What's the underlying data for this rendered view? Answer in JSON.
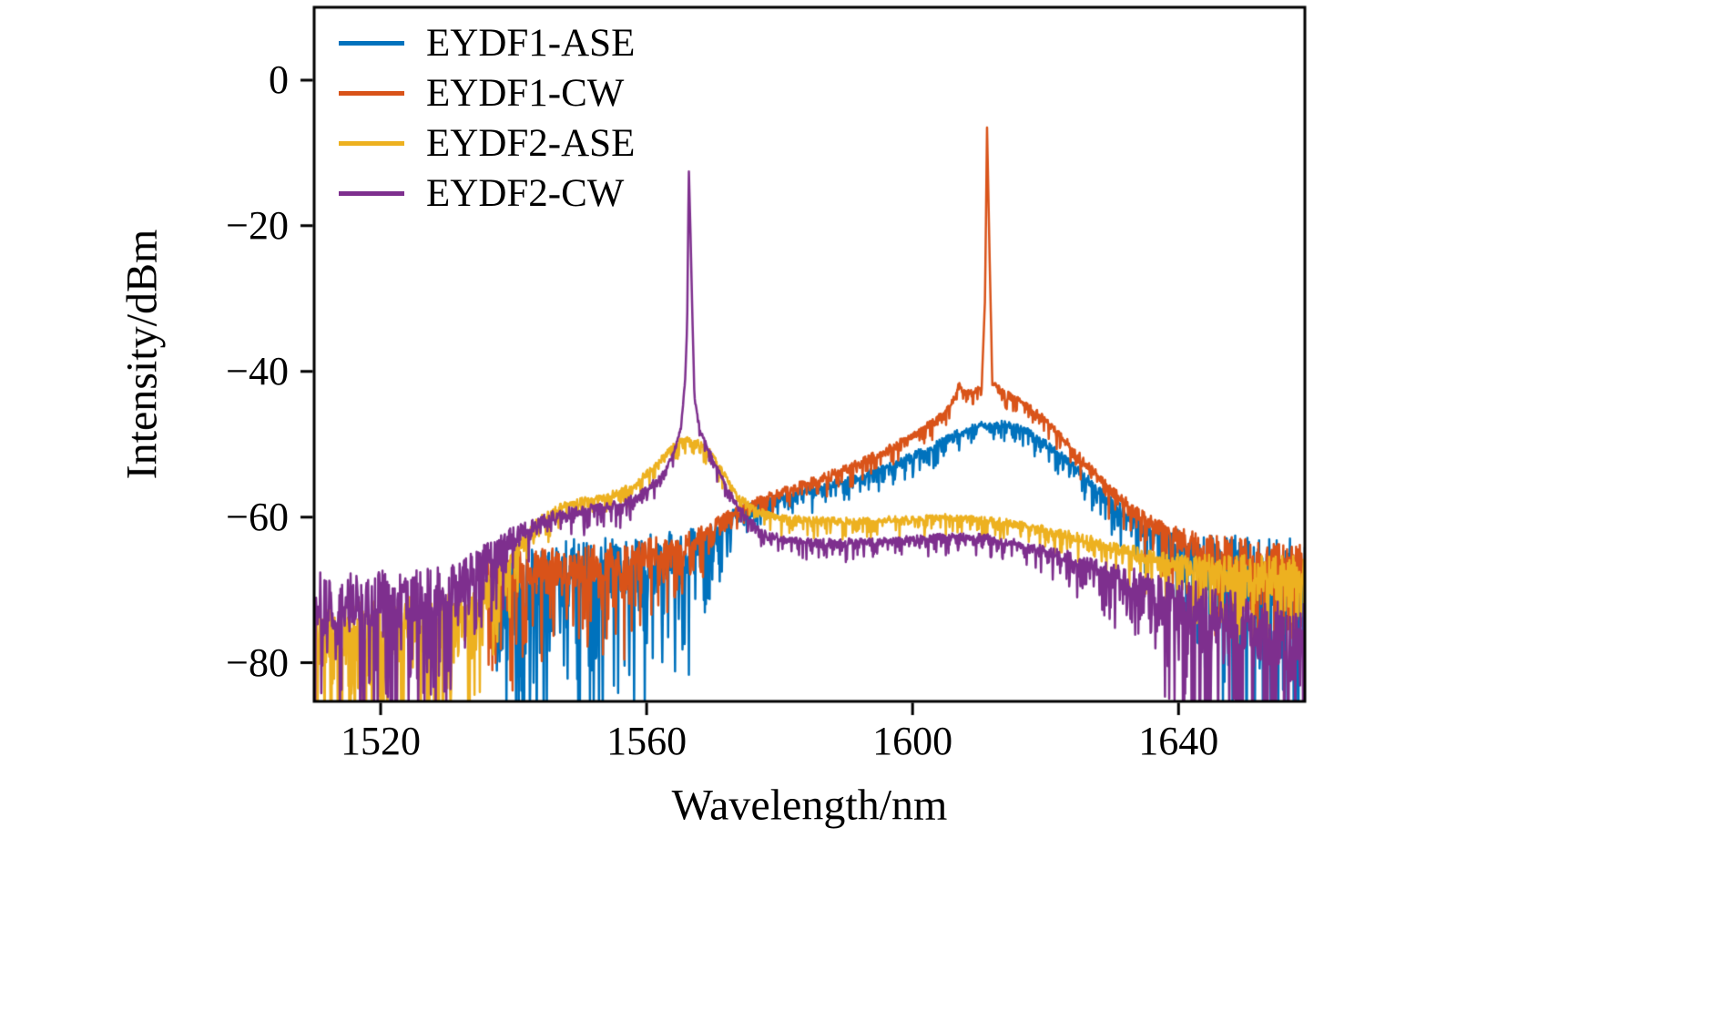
{
  "figure": {
    "background": "#ffffff",
    "frame_color": "#000000"
  },
  "chart_data": {
    "type": "line",
    "title": "",
    "xlabel": "Wavelength/nm",
    "ylabel": "Intensity/dBm",
    "xlim": [
      1510,
      1659
    ],
    "ylim": [
      -85.3,
      10
    ],
    "xticks": [
      1520,
      1560,
      1600,
      1640
    ],
    "yticks": [
      0,
      -20,
      -40,
      -60,
      -80
    ],
    "grid": false,
    "legend_position": "top-left",
    "series": [
      {
        "name": "EYDF1-ASE",
        "color": "#0072BD",
        "anchors": [
          [
            1537,
            -72,
            10
          ],
          [
            1540,
            -69,
            11
          ],
          [
            1548,
            -67,
            10
          ],
          [
            1556,
            -66.5,
            9
          ],
          [
            1563,
            -65.5,
            8
          ],
          [
            1568,
            -64,
            6
          ],
          [
            1571,
            -61.5,
            3
          ],
          [
            1574,
            -59,
            1.6
          ],
          [
            1578,
            -57.8,
            1.2
          ],
          [
            1584,
            -56.3,
            1.2
          ],
          [
            1590,
            -55,
            1.2
          ],
          [
            1596,
            -53.2,
            1.2
          ],
          [
            1602,
            -50.8,
            1.2
          ],
          [
            1606,
            -48.8,
            1.1
          ],
          [
            1610,
            -47.3,
            1.0
          ],
          [
            1614,
            -47.2,
            1.0
          ],
          [
            1617,
            -48,
            1.0
          ],
          [
            1621,
            -50.5,
            1.2
          ],
          [
            1626,
            -54.5,
            1.4
          ],
          [
            1630,
            -58,
            1.8
          ],
          [
            1634,
            -60.8,
            2.2
          ],
          [
            1638,
            -62.8,
            3
          ],
          [
            1642,
            -64.5,
            6
          ],
          [
            1647,
            -66.5,
            10
          ],
          [
            1652,
            -67.5,
            11
          ],
          [
            1659,
            -68,
            11
          ]
        ]
      },
      {
        "name": "EYDF1-CW",
        "color": "#D95319",
        "anchors": [
          [
            1536,
            -68,
            7
          ],
          [
            1542,
            -67,
            6
          ],
          [
            1550,
            -66.5,
            5.5
          ],
          [
            1558,
            -65.5,
            5
          ],
          [
            1564,
            -64,
            4
          ],
          [
            1568,
            -62.5,
            2.5
          ],
          [
            1571,
            -60.5,
            1.6
          ],
          [
            1574,
            -58.8,
            1.2
          ],
          [
            1578,
            -57.2,
            1.1
          ],
          [
            1584,
            -55.3,
            1.1
          ],
          [
            1590,
            -53.3,
            1.1
          ],
          [
            1596,
            -50.8,
            1.1
          ],
          [
            1601,
            -48.3,
            1.1
          ],
          [
            1605,
            -45.5,
            1.0
          ],
          [
            1606.4,
            -43.5,
            0.8
          ],
          [
            1607.0,
            -41.5,
            0.5
          ],
          [
            1607.6,
            -42.8,
            0.6
          ],
          [
            1609,
            -42.8,
            0.8
          ],
          [
            1610.4,
            -42.0,
            0.5
          ],
          [
            1610.9,
            -30,
            0
          ],
          [
            1611.2,
            -6.5,
            0
          ],
          [
            1611.6,
            -25,
            0
          ],
          [
            1612.0,
            -41.5,
            0.4
          ],
          [
            1613.5,
            -42.5,
            0.8
          ],
          [
            1616,
            -44,
            0.9
          ],
          [
            1619,
            -45.8,
            1.0
          ],
          [
            1622,
            -48.5,
            1.1
          ],
          [
            1626,
            -52.5,
            1.3
          ],
          [
            1630,
            -56.5,
            1.6
          ],
          [
            1634,
            -59.5,
            2
          ],
          [
            1638,
            -61.8,
            2.6
          ],
          [
            1642,
            -63.5,
            4
          ],
          [
            1647,
            -65,
            5.5
          ],
          [
            1653,
            -66,
            6
          ],
          [
            1659,
            -66.5,
            6
          ]
        ]
      },
      {
        "name": "EYDF2-ASE",
        "color": "#EDB120",
        "anchors": [
          [
            1507,
            -75,
            9
          ],
          [
            1514,
            -75.5,
            9
          ],
          [
            1521,
            -75,
            9
          ],
          [
            1528,
            -74.5,
            8.5
          ],
          [
            1534,
            -72.5,
            7
          ],
          [
            1538,
            -67.5,
            4
          ],
          [
            1541,
            -63.5,
            2.5
          ],
          [
            1544,
            -60.5,
            1.6
          ],
          [
            1547,
            -58.6,
            1.2
          ],
          [
            1551,
            -57.6,
            1.0
          ],
          [
            1555,
            -56.8,
            1.0
          ],
          [
            1558,
            -55.6,
            1.0
          ],
          [
            1561,
            -53.2,
            0.9
          ],
          [
            1563.5,
            -50.6,
            0.9
          ],
          [
            1565.5,
            -49.3,
            0.9
          ],
          [
            1567.5,
            -49.6,
            0.9
          ],
          [
            1569.5,
            -51,
            0.9
          ],
          [
            1571.5,
            -53.8,
            0.9
          ],
          [
            1573.5,
            -56.8,
            1.0
          ],
          [
            1576,
            -58.8,
            1.0
          ],
          [
            1579,
            -59.9,
            1.0
          ],
          [
            1584,
            -60.4,
            1.0
          ],
          [
            1590,
            -60.5,
            1.0
          ],
          [
            1597,
            -60.3,
            1.0
          ],
          [
            1604,
            -60.0,
            1.0
          ],
          [
            1610,
            -60.2,
            1.0
          ],
          [
            1615,
            -60.8,
            1.1
          ],
          [
            1620,
            -61.7,
            1.2
          ],
          [
            1625,
            -62.8,
            1.4
          ],
          [
            1630,
            -64,
            1.7
          ],
          [
            1635,
            -65.3,
            2.2
          ],
          [
            1640,
            -66.3,
            3
          ],
          [
            1646,
            -67,
            4.5
          ],
          [
            1652,
            -67.3,
            5
          ],
          [
            1659,
            -67.5,
            5
          ]
        ]
      },
      {
        "name": "EYDF2-CW",
        "color": "#7E2F8E",
        "anchors": [
          [
            1507,
            -71.5,
            9
          ],
          [
            1514,
            -71.5,
            9
          ],
          [
            1521,
            -71,
            8.5
          ],
          [
            1527,
            -70.5,
            8
          ],
          [
            1532,
            -69,
            7
          ],
          [
            1536,
            -65.5,
            4.5
          ],
          [
            1540,
            -62.5,
            3
          ],
          [
            1544,
            -60.5,
            2
          ],
          [
            1548,
            -59.3,
            1.5
          ],
          [
            1552,
            -58.8,
            1.3
          ],
          [
            1556,
            -58.2,
            1.3
          ],
          [
            1559,
            -57,
            1.2
          ],
          [
            1562,
            -54.5,
            1.0
          ],
          [
            1564,
            -51.5,
            0.8
          ],
          [
            1565.2,
            -47.5,
            0.6
          ],
          [
            1565.8,
            -41,
            0.3
          ],
          [
            1566.1,
            -33.5,
            0
          ],
          [
            1566.35,
            -12.2,
            0
          ],
          [
            1566.6,
            -21,
            0
          ],
          [
            1566.9,
            -33,
            0
          ],
          [
            1567.2,
            -43.5,
            0.3
          ],
          [
            1568,
            -48,
            0.5
          ],
          [
            1569.5,
            -51,
            0.7
          ],
          [
            1571,
            -54,
            0.9
          ],
          [
            1573,
            -57.5,
            1.0
          ],
          [
            1575.5,
            -60.5,
            1.0
          ],
          [
            1578,
            -62.3,
            1.0
          ],
          [
            1582,
            -63.2,
            1.0
          ],
          [
            1588,
            -63.4,
            1.0
          ],
          [
            1594,
            -63.3,
            1.0
          ],
          [
            1600,
            -63.0,
            1.0
          ],
          [
            1606,
            -62.6,
            1.0
          ],
          [
            1611,
            -62.8,
            1.1
          ],
          [
            1616,
            -63.6,
            1.2
          ],
          [
            1621,
            -64.8,
            1.5
          ],
          [
            1626,
            -66.2,
            2.2
          ],
          [
            1631,
            -68,
            3.5
          ],
          [
            1636,
            -70,
            5.5
          ],
          [
            1641,
            -72,
            8
          ],
          [
            1647,
            -74,
            10
          ],
          [
            1653,
            -75.5,
            10
          ],
          [
            1659,
            -76,
            10
          ]
        ]
      }
    ]
  }
}
